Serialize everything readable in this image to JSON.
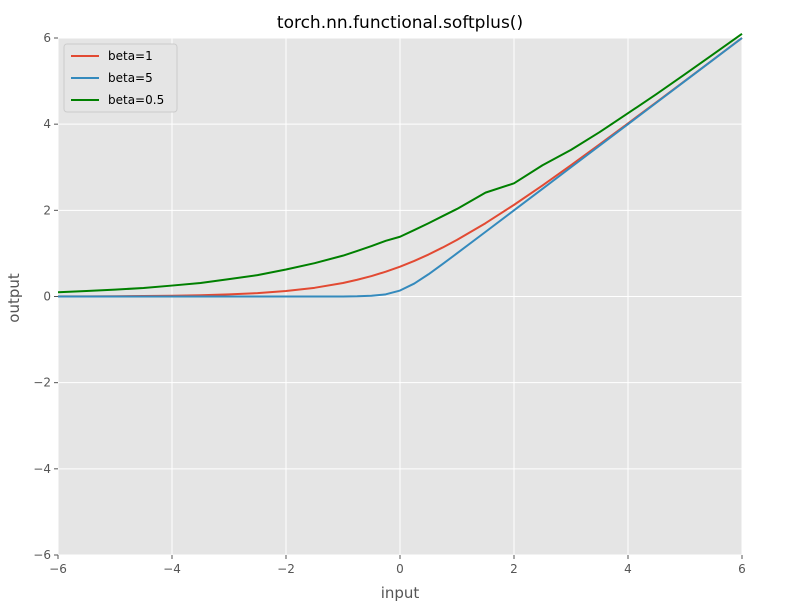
{
  "chart_data": {
    "type": "line",
    "title": "torch.nn.functional.softplus()",
    "xlabel": "input",
    "ylabel": "output",
    "xlim": [
      -6,
      6
    ],
    "ylim": [
      -6,
      6
    ],
    "xticks": [
      -6,
      -4,
      -2,
      0,
      2,
      4,
      6
    ],
    "yticks": [
      -6,
      -4,
      -2,
      0,
      2,
      4,
      6
    ],
    "xtick_labels": [
      "−6",
      "−4",
      "−2",
      "0",
      "2",
      "4",
      "6"
    ],
    "ytick_labels": [
      "−6",
      "−4",
      "−2",
      "0",
      "2",
      "4",
      "6"
    ],
    "grid": true,
    "legend_position": "top-left",
    "background_color": "#e5e5e5",
    "x": [
      -6,
      -5.5,
      -5,
      -4.5,
      -4,
      -3.5,
      -3,
      -2.5,
      -2,
      -1.5,
      -1,
      -0.75,
      -0.5,
      -0.25,
      0,
      0.25,
      0.5,
      0.75,
      1,
      1.5,
      2,
      2.5,
      3,
      3.5,
      4,
      4.5,
      5,
      5.5,
      6
    ],
    "series": [
      {
        "name": "beta=1",
        "color": "#e24a33",
        "values": [
          0.0025,
          0.0041,
          0.0067,
          0.011,
          0.0181,
          0.0298,
          0.0486,
          0.0789,
          0.1269,
          0.2014,
          0.3133,
          0.3886,
          0.4741,
          0.5759,
          0.6931,
          0.8259,
          0.9741,
          1.1386,
          1.3133,
          1.7014,
          2.1269,
          2.5789,
          3.0486,
          3.5298,
          4.0181,
          4.511,
          5.0067,
          5.5041,
          6.0025
        ]
      },
      {
        "name": "beta=5",
        "color": "#348abd",
        "values": [
          0.0,
          0.0,
          0.0,
          0.0,
          0.0,
          0.0,
          0.0,
          0.0,
          0.0001,
          0.0011,
          0.0013,
          0.0047,
          0.0163,
          0.0503,
          0.1386,
          0.3003,
          0.5163,
          0.7547,
          1.0013,
          1.5001,
          2.0,
          2.5,
          3.0,
          3.5,
          4.0,
          4.5,
          5.0,
          5.5,
          6.0
        ]
      },
      {
        "name": "beta=0.5",
        "color": "#008000",
        "values": [
          0.0972,
          0.1266,
          0.1589,
          0.1982,
          0.2539,
          0.3133,
          0.4028,
          0.4965,
          0.6265,
          0.773,
          0.9482,
          1.0572,
          1.1706,
          1.2925,
          1.3863,
          1.5425,
          1.7006,
          1.8665,
          2.032,
          2.411,
          2.6265,
          3.0469,
          3.4028,
          3.8133,
          4.2539,
          4.6982,
          5.1589,
          5.6266,
          6.0972
        ]
      }
    ]
  }
}
